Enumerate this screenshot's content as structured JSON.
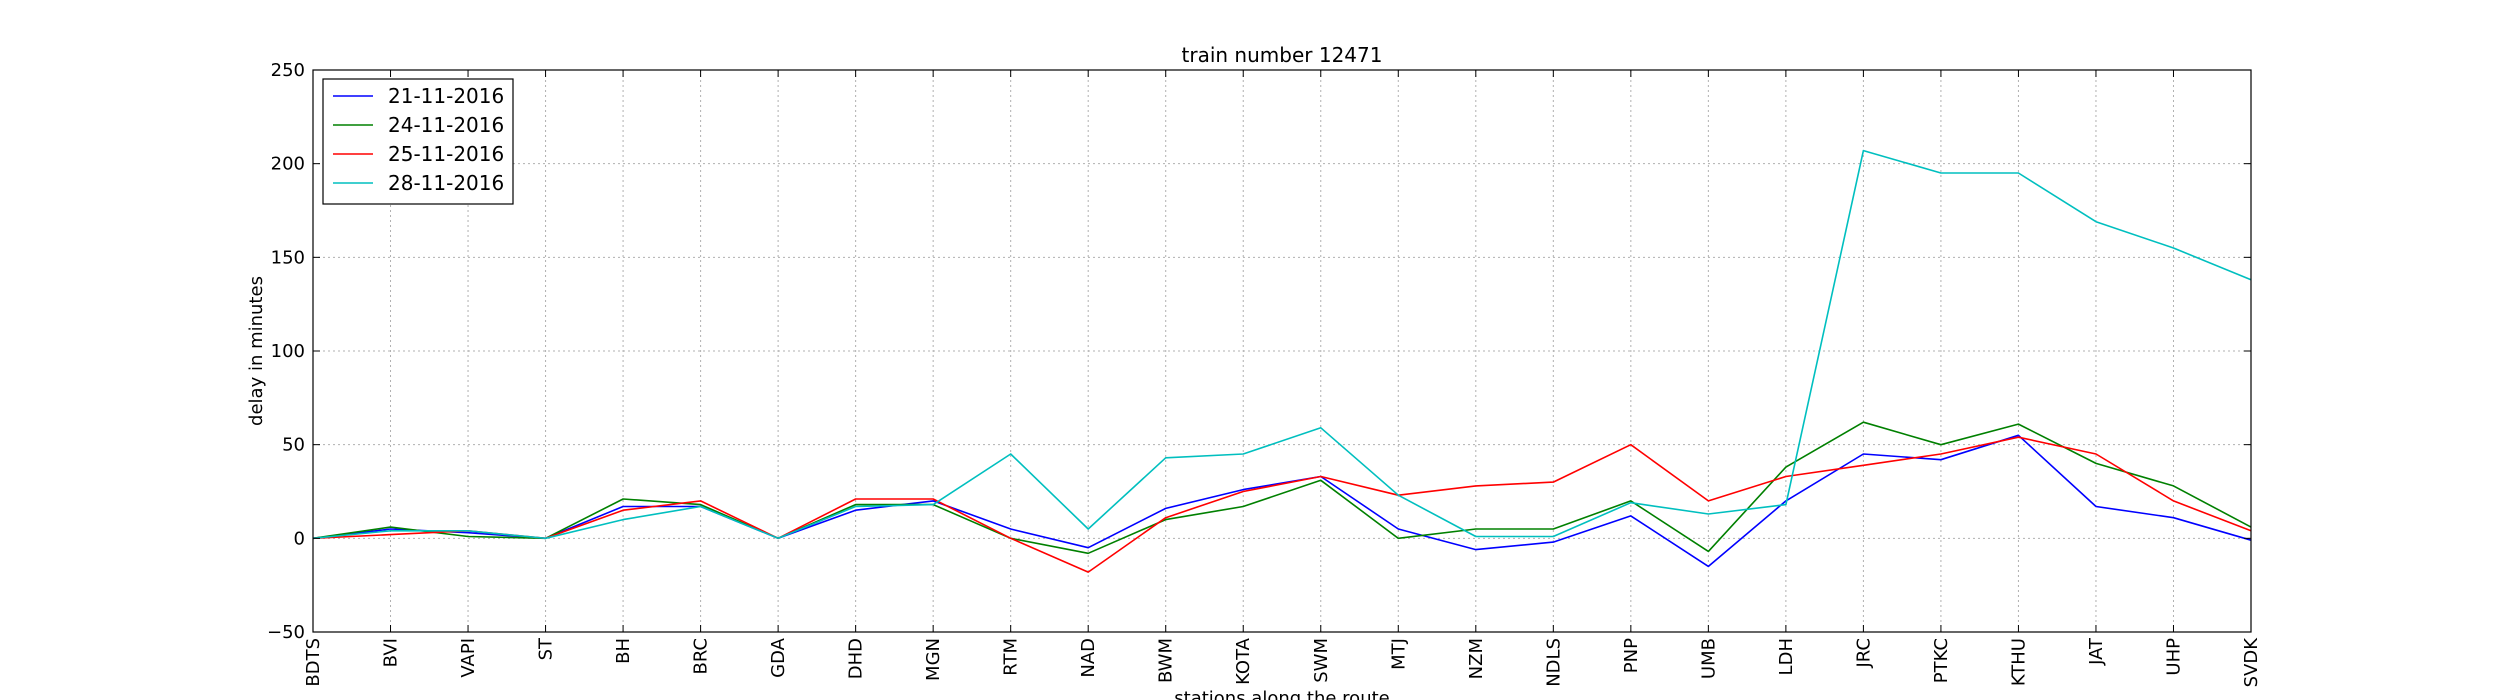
{
  "chart_data": {
    "type": "line",
    "title": "train number 12471",
    "xlabel": "stations along the route",
    "ylabel": "delay in minutes",
    "categories": [
      "BDTS",
      "BVI",
      "VAPI",
      "ST",
      "BH",
      "BRC",
      "GDA",
      "DHD",
      "MGN",
      "RTM",
      "NAD",
      "BWM",
      "KOTA",
      "SWM",
      "MTJ",
      "NZM",
      "NDLS",
      "PNP",
      "UMB",
      "LDH",
      "JRC",
      "PTKC",
      "KTHU",
      "JAT",
      "UHP",
      "SVDK"
    ],
    "ylim": [
      -50,
      250
    ],
    "yticks": [
      -50,
      0,
      50,
      100,
      150,
      200,
      250
    ],
    "grid": true,
    "legend_position": "top-left",
    "series": [
      {
        "name": "21-11-2016",
        "color": "#0000ff",
        "values": [
          0,
          5,
          3,
          0,
          17,
          17,
          0,
          15,
          20,
          5,
          -5,
          16,
          26,
          33,
          5,
          -6,
          -2,
          12,
          -15,
          20,
          45,
          42,
          55,
          17,
          11,
          -1
        ]
      },
      {
        "name": "24-11-2016",
        "color": "#008000",
        "values": [
          0,
          6,
          1,
          0,
          21,
          18,
          0,
          18,
          18,
          0,
          -8,
          10,
          17,
          31,
          0,
          5,
          5,
          20,
          -7,
          38,
          62,
          50,
          61,
          40,
          28,
          6
        ]
      },
      {
        "name": "25-11-2016",
        "color": "#ff0000",
        "values": [
          0,
          2,
          4,
          0,
          15,
          20,
          0,
          21,
          21,
          0,
          -18,
          11,
          25,
          33,
          23,
          28,
          30,
          50,
          20,
          33,
          39,
          45,
          54,
          45,
          20,
          4
        ]
      },
      {
        "name": "28-11-2016",
        "color": "#00bfbf",
        "values": [
          0,
          4,
          4,
          0,
          10,
          17,
          0,
          17,
          18,
          45,
          5,
          43,
          45,
          59,
          23,
          1,
          1,
          19,
          13,
          18,
          207,
          195,
          195,
          169,
          155,
          138
        ]
      }
    ]
  }
}
